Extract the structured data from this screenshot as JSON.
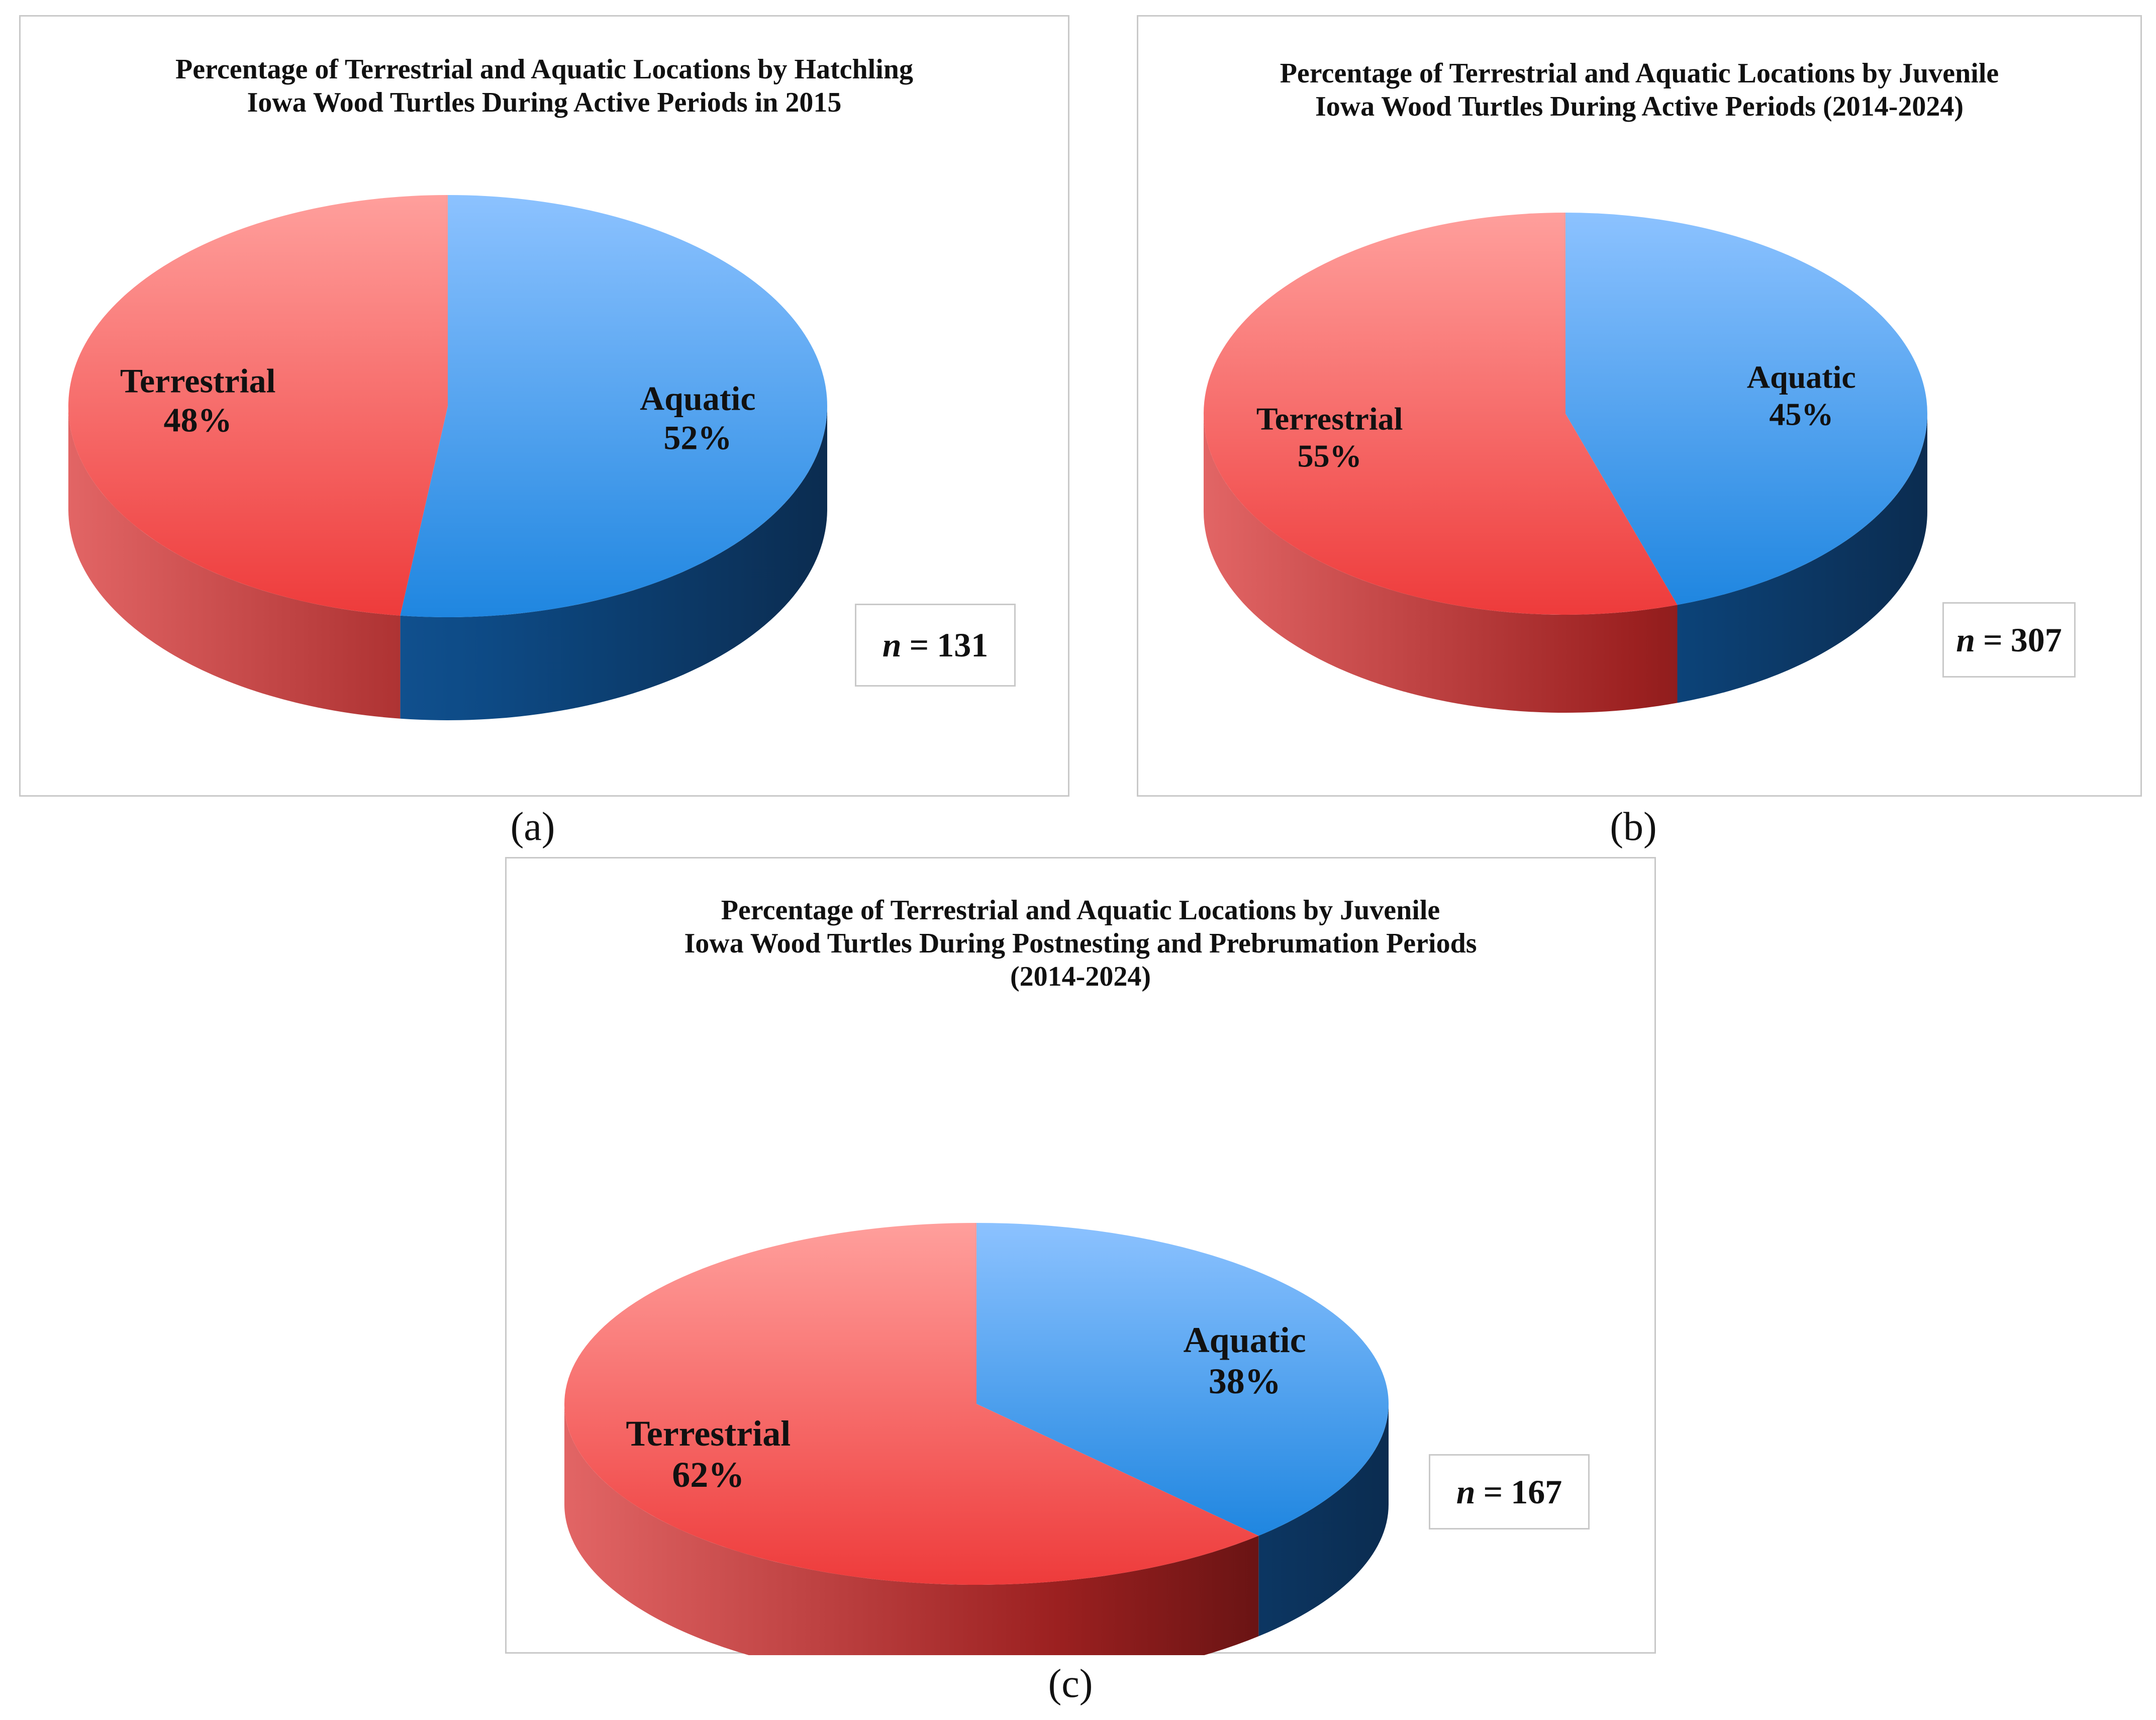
{
  "chart_data": [
    {
      "type": "pie",
      "panel_label": "(a)",
      "title": "Percentage of Terrestrial and Aquatic Locations by Hatchling\nIowa Wood Turtles During Active Periods in 2015",
      "slices": [
        {
          "name": "Aquatic",
          "value": 52,
          "value_label": "52%"
        },
        {
          "name": "Terrestrial",
          "value": 48,
          "value_label": "48%"
        }
      ],
      "n_label": "n",
      "n_value": "131",
      "colors": {
        "Aquatic": "#3a8fdf",
        "Terrestrial": "#f0595a"
      }
    },
    {
      "type": "pie",
      "panel_label": "(b)",
      "title": "Percentage of Terrestrial and Aquatic Locations by Juvenile\nIowa Wood Turtles During Active Periods (2014-2024)",
      "slices": [
        {
          "name": "Aquatic",
          "value": 45,
          "value_label": "45%"
        },
        {
          "name": "Terrestrial",
          "value": 55,
          "value_label": "55%"
        }
      ],
      "n_label": "n",
      "n_value": "307",
      "colors": {
        "Aquatic": "#3a8fdf",
        "Terrestrial": "#f0595a"
      }
    },
    {
      "type": "pie",
      "panel_label": "(c)",
      "title": "Percentage of Terrestrial and Aquatic Locations by Juvenile\nIowa Wood Turtles During Postnesting and Prebrumation Periods\n(2014-2024)",
      "slices": [
        {
          "name": "Aquatic",
          "value": 38,
          "value_label": "38%"
        },
        {
          "name": "Terrestrial",
          "value": 62,
          "value_label": "62%"
        }
      ],
      "n_label": "n",
      "n_value": "167",
      "colors": {
        "Aquatic": "#3a8fdf",
        "Terrestrial": "#f0595a"
      }
    }
  ]
}
